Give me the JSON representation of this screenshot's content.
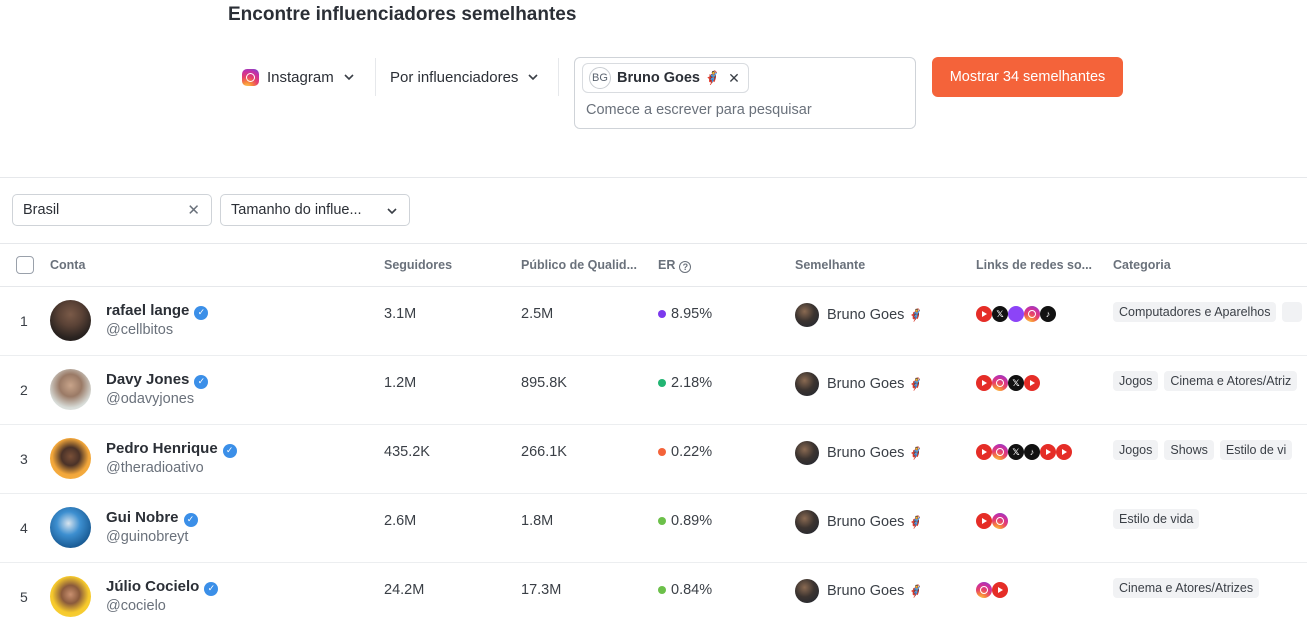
{
  "page_title": "Encontre influenciadores semelhantes",
  "search": {
    "platform": "Instagram",
    "platform_icon": "instagram-icon",
    "mode": "Por influenciadores",
    "chip_initials": "BG",
    "chip_label": "Bruno Goes",
    "chip_emoji": "🦸",
    "placeholder": "Comece a escrever para pesquisar",
    "show_button": "Mostrar 34 semelhantes",
    "accent_color": "#f4633a"
  },
  "filters": {
    "country": "Brasil",
    "size": "Tamanho do influe..."
  },
  "table": {
    "headers": {
      "account": "Conta",
      "followers": "Seguidores",
      "quality": "Público de Qualid...",
      "er": "ER",
      "similar": "Semelhante",
      "links": "Links de redes so...",
      "category": "Categoria"
    },
    "rows": [
      {
        "rank": "1",
        "name": "rafael lange",
        "handle": "@cellbitos",
        "followers": "3.1M",
        "quality": "2.5M",
        "er": "8.95%",
        "er_color": "#7c3aed",
        "similar": "Bruno Goes",
        "similar_emoji": "🦸",
        "socials": [
          "youtube",
          "x",
          "twitch",
          "instagram",
          "tiktok"
        ],
        "categories": [
          "Computadores e Aparelhos",
          ""
        ]
      },
      {
        "rank": "2",
        "name": "Davy Jones",
        "handle": "@odavyjones",
        "followers": "1.2M",
        "quality": "895.8K",
        "er": "2.18%",
        "er_color": "#22b573",
        "similar": "Bruno Goes",
        "similar_emoji": "🦸",
        "socials": [
          "youtube",
          "instagram",
          "x",
          "youtube"
        ],
        "categories": [
          "Jogos",
          "Cinema e Atores/Atriz"
        ]
      },
      {
        "rank": "3",
        "name": "Pedro Henrique",
        "handle": "@theradioativo",
        "followers": "435.2K",
        "quality": "266.1K",
        "er": "0.22%",
        "er_color": "#f4633a",
        "similar": "Bruno Goes",
        "similar_emoji": "🦸",
        "socials": [
          "youtube",
          "instagram",
          "x",
          "tiktok",
          "youtube",
          "youtube"
        ],
        "categories": [
          "Jogos",
          "Shows",
          "Estilo de vi"
        ]
      },
      {
        "rank": "4",
        "name": "Gui Nobre",
        "handle": "@guinobreyt",
        "followers": "2.6M",
        "quality": "1.8M",
        "er": "0.89%",
        "er_color": "#6cc04a",
        "similar": "Bruno Goes",
        "similar_emoji": "🦸",
        "socials": [
          "youtube",
          "instagram"
        ],
        "categories": [
          "Estilo de vida"
        ]
      },
      {
        "rank": "5",
        "name": "Júlio Cocielo",
        "handle": "@cocielo",
        "followers": "24.2M",
        "quality": "17.3M",
        "er": "0.84%",
        "er_color": "#6cc04a",
        "similar": "Bruno Goes",
        "similar_emoji": "🦸",
        "socials": [
          "instagram",
          "youtube"
        ],
        "categories": [
          "Cinema e Atores/Atrizes"
        ]
      }
    ]
  }
}
